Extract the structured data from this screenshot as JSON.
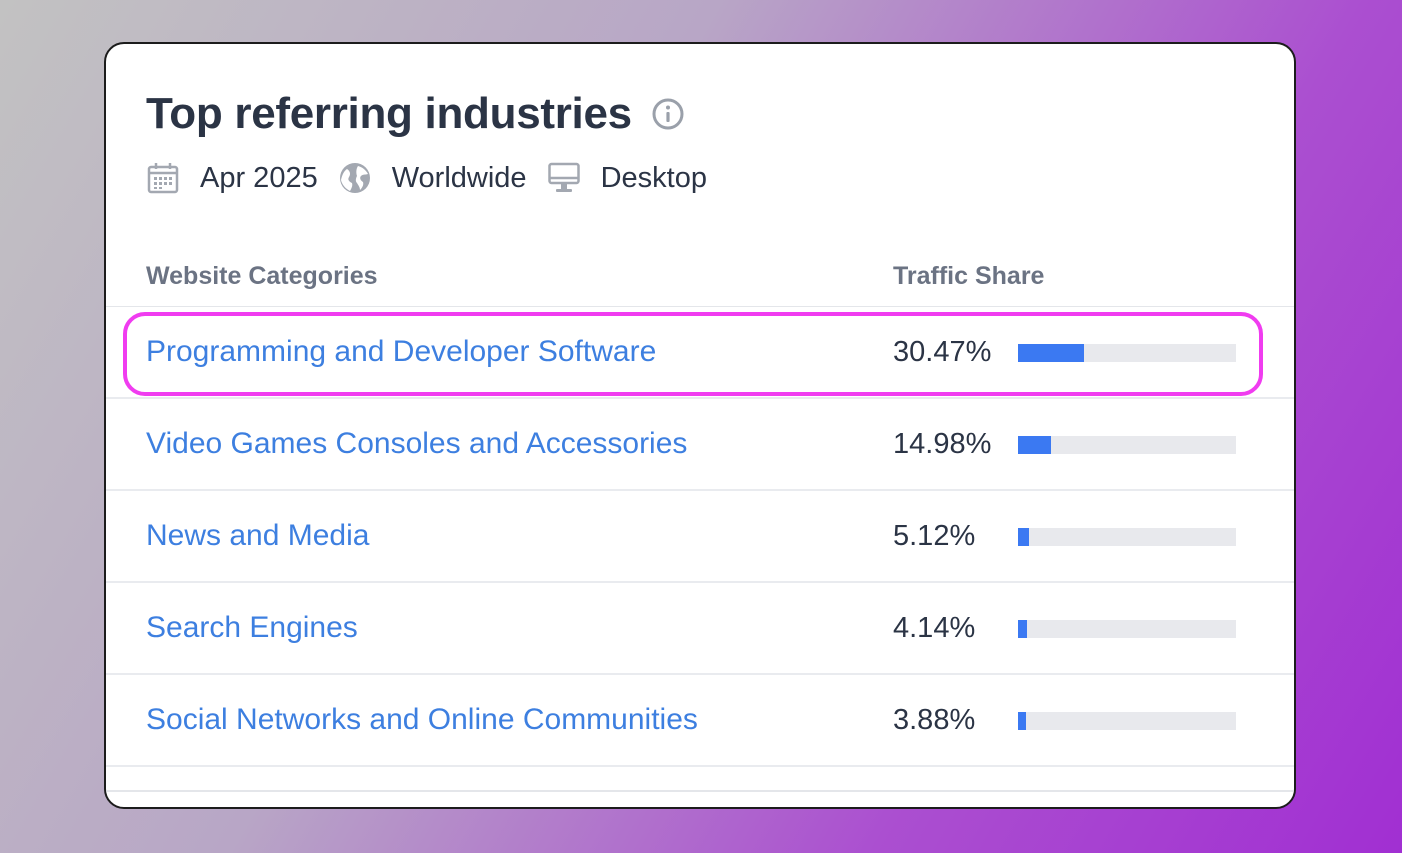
{
  "widget": {
    "title": "Top referring industries",
    "info_icon": "info-circle-icon",
    "meta": {
      "date": {
        "icon": "calendar-icon",
        "label": "Apr 2025"
      },
      "region": {
        "icon": "globe-icon",
        "label": "Worldwide"
      },
      "device": {
        "icon": "desktop-monitor-icon",
        "label": "Desktop"
      }
    }
  },
  "table": {
    "columns": {
      "category": "Website Categories",
      "share": "Traffic Share"
    },
    "rows": [
      {
        "category": "Programming and Developer Software",
        "share_label": "30.47%",
        "share": 30.47
      },
      {
        "category": "Video Games Consoles and Accessories",
        "share_label": "14.98%",
        "share": 14.98
      },
      {
        "category": "News and Media",
        "share_label": "5.12%",
        "share": 5.12
      },
      {
        "category": "Search Engines",
        "share_label": "4.14%",
        "share": 4.14
      },
      {
        "category": "Social Networks and Online Communities",
        "share_label": "3.88%",
        "share": 3.88
      }
    ]
  },
  "colors": {
    "link": "#3d7fe0",
    "bar_fill": "#3b79f2",
    "bar_track": "#e8e9ed",
    "highlight": "#f03cf0",
    "title": "#2b3445"
  }
}
